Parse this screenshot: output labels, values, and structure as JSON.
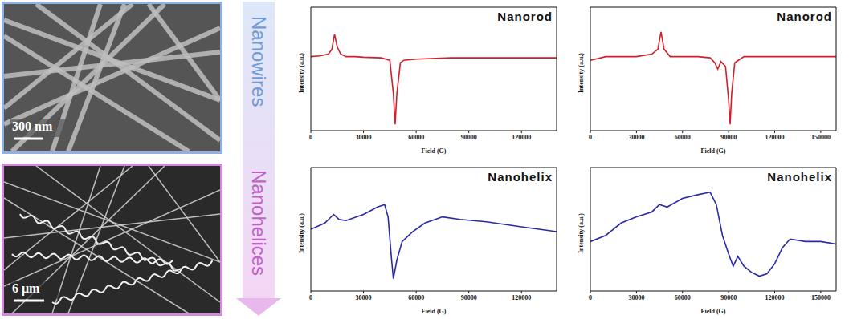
{
  "images": [
    {
      "label": "Nanowires",
      "scale_bar": "300 nm"
    },
    {
      "label": "Nanohelices",
      "scale_bar": "6 μm"
    }
  ],
  "chart_data": [
    {
      "type": "line",
      "title": "Nanorod",
      "x_label": "Field (G)",
      "y_label": "Intensity (a.u.)",
      "color": "#d0202a",
      "xlim": [
        0,
        140000
      ],
      "xticks": [
        0,
        30000,
        60000,
        90000,
        120000
      ],
      "ylim": [
        0,
        1
      ],
      "tick_labels": "x",
      "x": [
        0,
        5000,
        10000,
        12000,
        13500,
        15000,
        17000,
        20000,
        25000,
        30000,
        40000,
        45000,
        47000,
        48000,
        49000,
        51000,
        53000,
        60000,
        80000,
        100000,
        120000,
        140000
      ],
      "values": [
        0.6,
        0.605,
        0.62,
        0.66,
        0.78,
        0.68,
        0.62,
        0.6,
        0.6,
        0.595,
        0.59,
        0.57,
        0.3,
        0.05,
        0.3,
        0.55,
        0.57,
        0.58,
        0.59,
        0.59,
        0.59,
        0.59
      ]
    },
    {
      "type": "line",
      "title": "Nanorod",
      "x_label": "Field (G)",
      "y_label": "Intensity (a.u.)",
      "color": "#d0202a",
      "xlim": [
        0,
        160000
      ],
      "xticks": [
        0,
        30000,
        60000,
        90000,
        120000,
        150000
      ],
      "ylim": [
        0,
        1
      ],
      "tick_labels": "x",
      "x": [
        0,
        10000,
        20000,
        30000,
        40000,
        44000,
        46000,
        48000,
        52000,
        60000,
        70000,
        78000,
        81000,
        83000,
        85000,
        88000,
        90000,
        91000,
        92000,
        94000,
        100000,
        120000,
        140000,
        160000
      ],
      "values": [
        0.57,
        0.6,
        0.6,
        0.6,
        0.62,
        0.66,
        0.8,
        0.66,
        0.6,
        0.6,
        0.6,
        0.59,
        0.55,
        0.5,
        0.56,
        0.52,
        0.25,
        0.05,
        0.3,
        0.55,
        0.6,
        0.6,
        0.6,
        0.6
      ]
    },
    {
      "type": "line",
      "title": "Nanohelix",
      "x_label": "Field (G)",
      "y_label": "Intensity (a.u.)",
      "color": "#2a2aa8",
      "xlim": [
        0,
        140000
      ],
      "xticks": [
        0,
        30000,
        60000,
        90000,
        120000
      ],
      "ylim": [
        0,
        1
      ],
      "tick_labels": "x",
      "x": [
        0,
        8000,
        13000,
        16000,
        20000,
        30000,
        38000,
        42000,
        44000,
        46000,
        47000,
        49000,
        52000,
        58000,
        65000,
        75000,
        85000,
        100000,
        120000,
        140000
      ],
      "values": [
        0.5,
        0.55,
        0.62,
        0.58,
        0.57,
        0.62,
        0.68,
        0.7,
        0.6,
        0.25,
        0.1,
        0.25,
        0.4,
        0.48,
        0.55,
        0.6,
        0.58,
        0.56,
        0.52,
        0.48
      ]
    },
    {
      "type": "line",
      "title": "Nanohelix",
      "x_label": "Field (G)",
      "y_label": "Intensity (a.u.)",
      "color": "#2a2aa8",
      "xlim": [
        0,
        160000
      ],
      "xticks": [
        0,
        30000,
        60000,
        90000,
        120000,
        150000
      ],
      "ylim": [
        0,
        1
      ],
      "tick_labels": "x",
      "x": [
        0,
        10000,
        20000,
        30000,
        40000,
        45000,
        50000,
        60000,
        70000,
        78000,
        82000,
        86000,
        90000,
        93000,
        96000,
        100000,
        105000,
        110000,
        115000,
        120000,
        125000,
        130000,
        140000,
        150000,
        160000
      ],
      "values": [
        0.4,
        0.45,
        0.55,
        0.6,
        0.64,
        0.7,
        0.68,
        0.75,
        0.78,
        0.8,
        0.7,
        0.45,
        0.3,
        0.2,
        0.28,
        0.2,
        0.15,
        0.12,
        0.14,
        0.22,
        0.35,
        0.42,
        0.4,
        0.4,
        0.38
      ]
    }
  ]
}
